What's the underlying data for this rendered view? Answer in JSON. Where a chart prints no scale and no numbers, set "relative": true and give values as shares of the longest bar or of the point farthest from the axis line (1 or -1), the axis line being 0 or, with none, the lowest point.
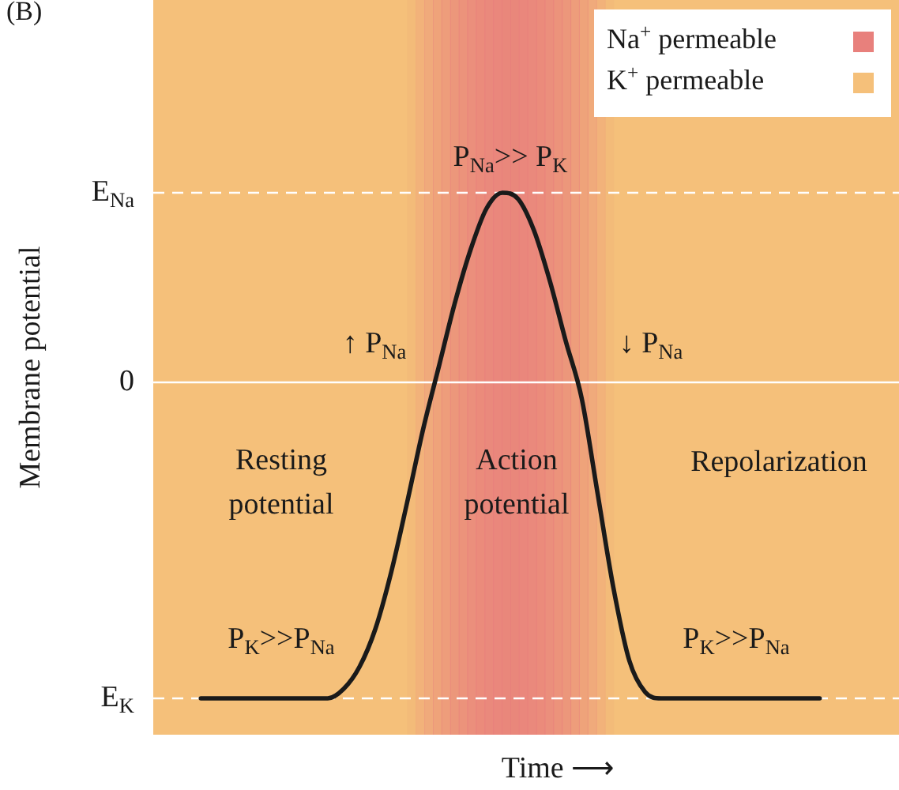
{
  "chart_data": {
    "type": "line",
    "title": "(B)",
    "xlabel": "Time ⟶",
    "ylabel": "Membrane potential",
    "relative": true,
    "categories": [
      null,
      null,
      null,
      null,
      null,
      null,
      null,
      null,
      null,
      null,
      null,
      null,
      null,
      null,
      null,
      null,
      null,
      null,
      null,
      null,
      null,
      null,
      null,
      null,
      null,
      null,
      null,
      null,
      null,
      null,
      null,
      null,
      null,
      null,
      null,
      null,
      null,
      null,
      null,
      null
    ],
    "series": [
      {
        "color": "#1a1a1a",
        "values": [
          -1,
          -1,
          -1,
          -1,
          -1,
          -1,
          -1,
          -1,
          -1,
          -0.97,
          -0.9,
          -0.78,
          -0.6,
          -0.38,
          -0.15,
          0.05,
          0.25,
          0.42,
          0.55,
          0.6,
          0.58,
          0.48,
          0.32,
          0.13,
          -0.05,
          -0.35,
          -0.65,
          -0.88,
          -0.98,
          -1,
          -1,
          -1,
          -1,
          -1,
          -1,
          -1,
          -1,
          -1,
          -1,
          -1
        ]
      }
    ],
    "ref_lines": [
      {
        "axis": "y",
        "value": 0.6,
        "label": "E$_{Na}$",
        "color": "#ffffff",
        "line_style": "dashed"
      },
      {
        "axis": "y",
        "value": 0,
        "label": "0",
        "color": "#ffffff",
        "line_style": "solid"
      },
      {
        "axis": "y",
        "value": -1,
        "label": "E$_{K}$",
        "color": "#ffffff",
        "line_style": "dashed"
      }
    ],
    "annotations": [
      "Resting potential",
      "Action potential",
      "Repolarization",
      "P$_{K}$>>P$_{Na}$",
      "P$_{Na}$>> P$_{K}$",
      "↑ P$_{Na}$",
      "↓ P$_{Na}$",
      "P$_{K}$>>P$_{Na}$",
      "Na$^{+}$ permeable",
      "K$^{+}$ permeable"
    ]
  }
}
